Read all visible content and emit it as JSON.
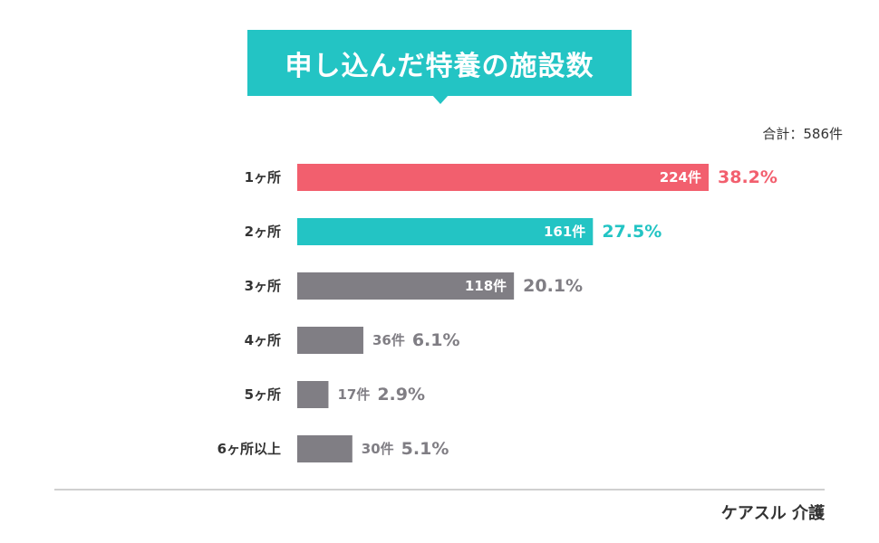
{
  "title": "申し込んだ特養の施設数",
  "total_label": "合計：586件",
  "brand": "ケアスル 介護",
  "colors": {
    "accent": "#23c4c4",
    "highlight": "#f25f6e",
    "neutral": "#807e84"
  },
  "chart_data": {
    "type": "bar",
    "orientation": "horizontal",
    "title": "申し込んだ特養の施設数",
    "categories": [
      "1ヶ所",
      "2ヶ所",
      "3ヶ所",
      "4ヶ所",
      "5ヶ所",
      "6ヶ所以上"
    ],
    "values": [
      224,
      161,
      118,
      36,
      17,
      30
    ],
    "count_labels": [
      "224件",
      "161件",
      "118件",
      "36件",
      "17件",
      "30件"
    ],
    "percent_labels": [
      "38.2%",
      "27.5%",
      "20.1%",
      "6.1%",
      "2.9%",
      "5.1%"
    ],
    "bar_colors": [
      "#f25f6e",
      "#23c4c4",
      "#807e84",
      "#807e84",
      "#807e84",
      "#807e84"
    ],
    "percent_colors": [
      "#f25f6e",
      "#23c4c4",
      "#807e84",
      "#807e84",
      "#807e84",
      "#807e84"
    ],
    "xlim": [
      0,
      224
    ],
    "grid": false,
    "legend": "none"
  }
}
